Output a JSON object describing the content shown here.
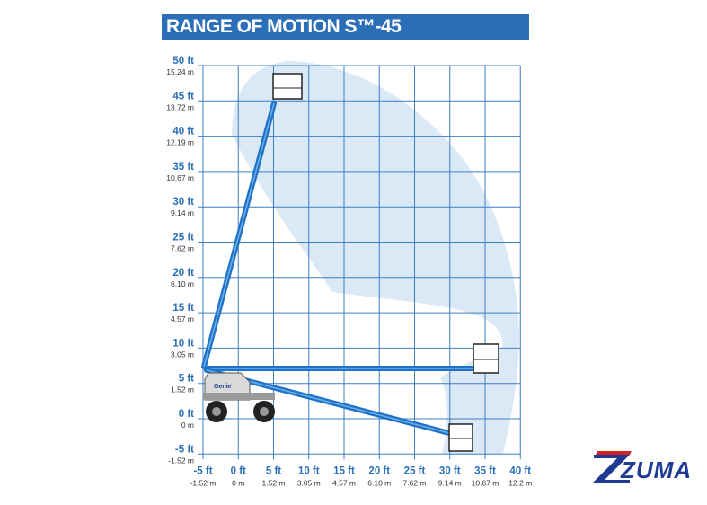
{
  "header": {
    "title": "RANGE OF MOTION S™-45"
  },
  "colors": {
    "brand_blue": "#2a6fb8",
    "envelope": "#dbe9f6",
    "grid": "#3d7fc4",
    "logo_navy": "#1f3a93",
    "logo_red": "#d42027"
  },
  "y_axis": {
    "ft": [
      "50 ft",
      "45 ft",
      "40 ft",
      "35 ft",
      "30 ft",
      "25 ft",
      "20 ft",
      "15 ft",
      "10 ft",
      "5 ft",
      "0 ft",
      "-5 ft"
    ],
    "m": [
      "15.24 m",
      "13.72 m",
      "12.19 m",
      "10.67 m",
      "9.14 m",
      "7.62 m",
      "6.10 m",
      "4.57 m",
      "3.05 m",
      "1.52 m",
      "0 m",
      "-1.52 m"
    ]
  },
  "x_axis": {
    "ft": [
      "-5 ft",
      "0 ft",
      "5 ft",
      "10 ft",
      "15 ft",
      "20 ft",
      "25 ft",
      "30 ft",
      "35 ft",
      "40 ft"
    ],
    "m": [
      "-1.52 m",
      "0 m",
      "1.52 m",
      "3.05 m",
      "4.57 m",
      "6.10 m",
      "7.62 m",
      "9.14 m",
      "10.67 m",
      "12.2 m"
    ]
  },
  "logo": {
    "text": "ZUMA",
    "icon": "zuma-logo"
  },
  "machine": {
    "icon": "boom-lift-icon",
    "brand_text": "Genie"
  }
}
